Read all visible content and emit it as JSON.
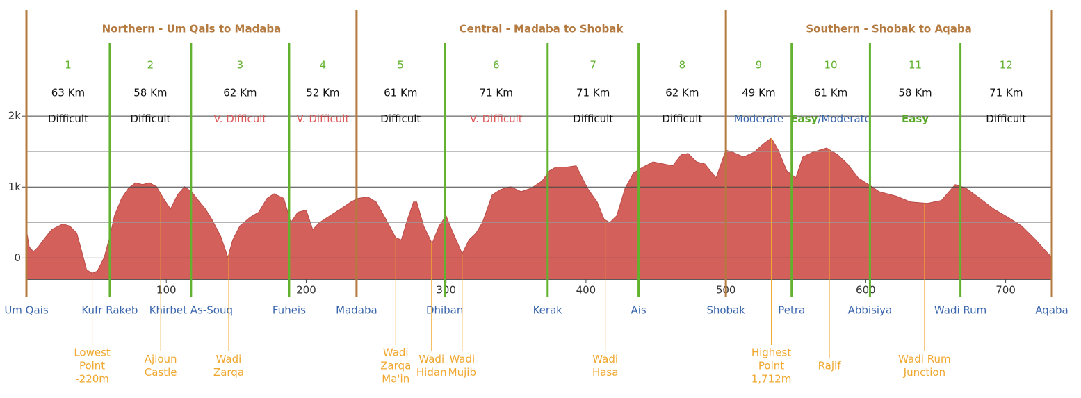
{
  "chart_data": {
    "type": "area",
    "color": "#d3605b",
    "x": [
      0,
      2,
      5,
      8.5,
      12,
      18,
      26,
      31,
      36,
      40,
      43,
      47,
      50.7,
      55.6,
      59.6,
      63,
      68,
      73,
      78,
      83,
      88,
      93,
      98,
      103,
      108,
      113,
      118,
      123,
      128,
      132.6,
      139,
      144,
      147.5,
      152.5,
      160,
      166,
      172,
      177,
      184,
      189,
      194,
      200,
      204.7,
      209.6,
      217,
      224.5,
      232,
      237,
      244,
      250,
      257,
      264,
      268,
      271.7,
      276.7,
      279,
      284,
      290,
      295,
      300,
      304,
      311.5,
      316.4,
      321.4,
      326,
      333,
      339,
      346,
      353.7,
      361,
      368.6,
      374,
      378.5,
      386,
      393,
      401,
      408,
      413,
      417,
      422,
      428,
      434,
      440.6,
      448,
      455.5,
      462,
      468,
      473,
      479,
      485,
      493,
      500,
      505,
      512.7,
      520,
      527.6,
      532.5,
      537.5,
      543.5,
      550,
      555,
      562,
      572,
      580,
      587,
      594.6,
      602,
      609.5,
      622,
      632,
      644,
      654,
      664,
      671.6,
      681.6,
      691.5,
      701.5,
      711.5,
      721.5,
      729,
      733
    ],
    "values": [
      400,
      156,
      90,
      156,
      250,
      400,
      480,
      450,
      350,
      60,
      -165,
      -215,
      -185,
      10,
      300,
      600,
      840,
      985,
      1060,
      1035,
      1060,
      1005,
      840,
      690,
      890,
      1005,
      935,
      810,
      690,
      545,
      300,
      10,
      255,
      450,
      575,
      645,
      840,
      905,
      840,
      500,
      645,
      675,
      400,
      500,
      595,
      690,
      790,
      840,
      860,
      790,
      545,
      285,
      255,
      500,
      790,
      790,
      450,
      205,
      450,
      595,
      400,
      60,
      255,
      350,
      500,
      890,
      965,
      1005,
      935,
      985,
      1085,
      1230,
      1280,
      1280,
      1300,
      985,
      790,
      545,
      500,
      595,
      985,
      1200,
      1280,
      1355,
      1325,
      1300,
      1455,
      1475,
      1355,
      1325,
      1130,
      1520,
      1490,
      1425,
      1490,
      1620,
      1690,
      1520,
      1230,
      1130,
      1425,
      1490,
      1550,
      1455,
      1325,
      1130,
      1035,
      935,
      870,
      790,
      770,
      810,
      1035,
      985,
      840,
      690,
      575,
      450,
      255,
      90,
      10
    ],
    "xlim": [
      0,
      733
    ],
    "ylim": [
      -300,
      3500
    ],
    "xticks": [
      100,
      200,
      300,
      400,
      500,
      600,
      700
    ],
    "yticks": [
      0,
      {
        "value": 1000,
        "label": "1k"
      },
      {
        "value": 2000,
        "label": "2k"
      }
    ],
    "minor_grid": [
      500,
      1500
    ],
    "regions": [
      {
        "name": "Northern - Um Qais to Madaba",
        "start": 0,
        "end": 236
      },
      {
        "name": "Central - Madaba to Shobak",
        "start": 236,
        "end": 500
      },
      {
        "name": "Southern - Shobak to Aqaba",
        "start": 500,
        "end": 733
      }
    ],
    "stages": [
      {
        "number": 1,
        "distance": "63 Km",
        "start": 0,
        "end": 59.6,
        "difficulty": [
          {
            "text": "Difficult",
            "color": "#111111"
          }
        ]
      },
      {
        "number": 2,
        "distance": "58 Km",
        "start": 59.6,
        "end": 117.7,
        "difficulty": [
          {
            "text": "Difficult",
            "color": "#111111"
          }
        ]
      },
      {
        "number": 3,
        "distance": "62 Km",
        "start": 117.7,
        "end": 187.8,
        "difficulty": [
          {
            "text": "V. Difficult",
            "color": "#e0595a"
          }
        ]
      },
      {
        "number": 4,
        "distance": "52 Km",
        "start": 187.8,
        "end": 236,
        "difficulty": [
          {
            "text": "V. Difficult",
            "color": "#e0595a"
          }
        ]
      },
      {
        "number": 5,
        "distance": "61 Km",
        "start": 236,
        "end": 299,
        "difficulty": [
          {
            "text": "Difficult",
            "color": "#111111"
          }
        ]
      },
      {
        "number": 6,
        "distance": "71 Km",
        "start": 299,
        "end": 372.6,
        "difficulty": [
          {
            "text": "V. Difficult",
            "color": "#e0595a"
          }
        ]
      },
      {
        "number": 7,
        "distance": "71 Km",
        "start": 372.6,
        "end": 437.6,
        "difficulty": [
          {
            "text": "Difficult",
            "color": "#111111"
          }
        ]
      },
      {
        "number": 8,
        "distance": "62 Km",
        "start": 437.6,
        "end": 500,
        "difficulty": [
          {
            "text": "Difficult",
            "color": "#111111"
          }
        ]
      },
      {
        "number": 9,
        "distance": "49 Km",
        "start": 500,
        "end": 547,
        "difficulty": [
          {
            "text": "Moderate",
            "color": "#3a66ad"
          }
        ]
      },
      {
        "number": 10,
        "distance": "61 Km",
        "start": 547,
        "end": 603,
        "difficulty": [
          {
            "text": "Easy",
            "color": "#5aaa2a"
          },
          {
            "text": "/",
            "color": "#3a66ad"
          },
          {
            "text": "Moderate",
            "color": "#3a66ad"
          }
        ]
      },
      {
        "number": 11,
        "distance": "58 Km",
        "start": 603,
        "end": 667.7,
        "difficulty": [
          {
            "text": "Easy",
            "color": "#5aaa2a"
          }
        ]
      },
      {
        "number": 12,
        "distance": "71 Km",
        "start": 667.7,
        "end": 733,
        "difficulty": [
          {
            "text": "Difficult",
            "color": "#111111"
          }
        ]
      }
    ],
    "places": [
      {
        "name": "Um Qais",
        "x": 0
      },
      {
        "name": "Kufr Rakeb",
        "x": 59.6
      },
      {
        "name": "Khirbet As-Souq",
        "x": 117.7
      },
      {
        "name": "Fuheis",
        "x": 187.8
      },
      {
        "name": "Madaba",
        "x": 236
      },
      {
        "name": "Dhiban",
        "x": 299
      },
      {
        "name": "Kerak",
        "x": 372.6
      },
      {
        "name": "Ais",
        "x": 437.6
      },
      {
        "name": "Shobak",
        "x": 500
      },
      {
        "name": "Petra",
        "x": 547
      },
      {
        "name": "Abbisiya",
        "x": 603
      },
      {
        "name": "Wadi Rum",
        "x": 667.7
      },
      {
        "name": "Aqaba",
        "x": 733
      }
    ],
    "annotations": [
      {
        "lines": [
          "Lowest",
          "Point",
          "-220m"
        ],
        "x": 47
      },
      {
        "lines": [
          "Ajloun",
          "Castle"
        ],
        "x": 96
      },
      {
        "lines": [
          "Wadi",
          "Zarqa"
        ],
        "x": 144.6
      },
      {
        "lines": [
          "Wadi",
          "Zarqa",
          "Ma'in"
        ],
        "x": 264
      },
      {
        "lines": [
          "Wadi",
          "Hidan"
        ],
        "x": 289.6
      },
      {
        "lines": [
          "Wadi",
          "Mujib"
        ],
        "x": 311.5
      },
      {
        "lines": [
          "Wadi",
          "Hasa"
        ],
        "x": 413.8
      },
      {
        "lines": [
          "Highest",
          "Point",
          "1,712m"
        ],
        "x": 532.5
      },
      {
        "lines": [
          "Rajif"
        ],
        "x": 574
      },
      {
        "lines": [
          "Wadi Rum",
          "Junction"
        ],
        "x": 642
      }
    ]
  }
}
